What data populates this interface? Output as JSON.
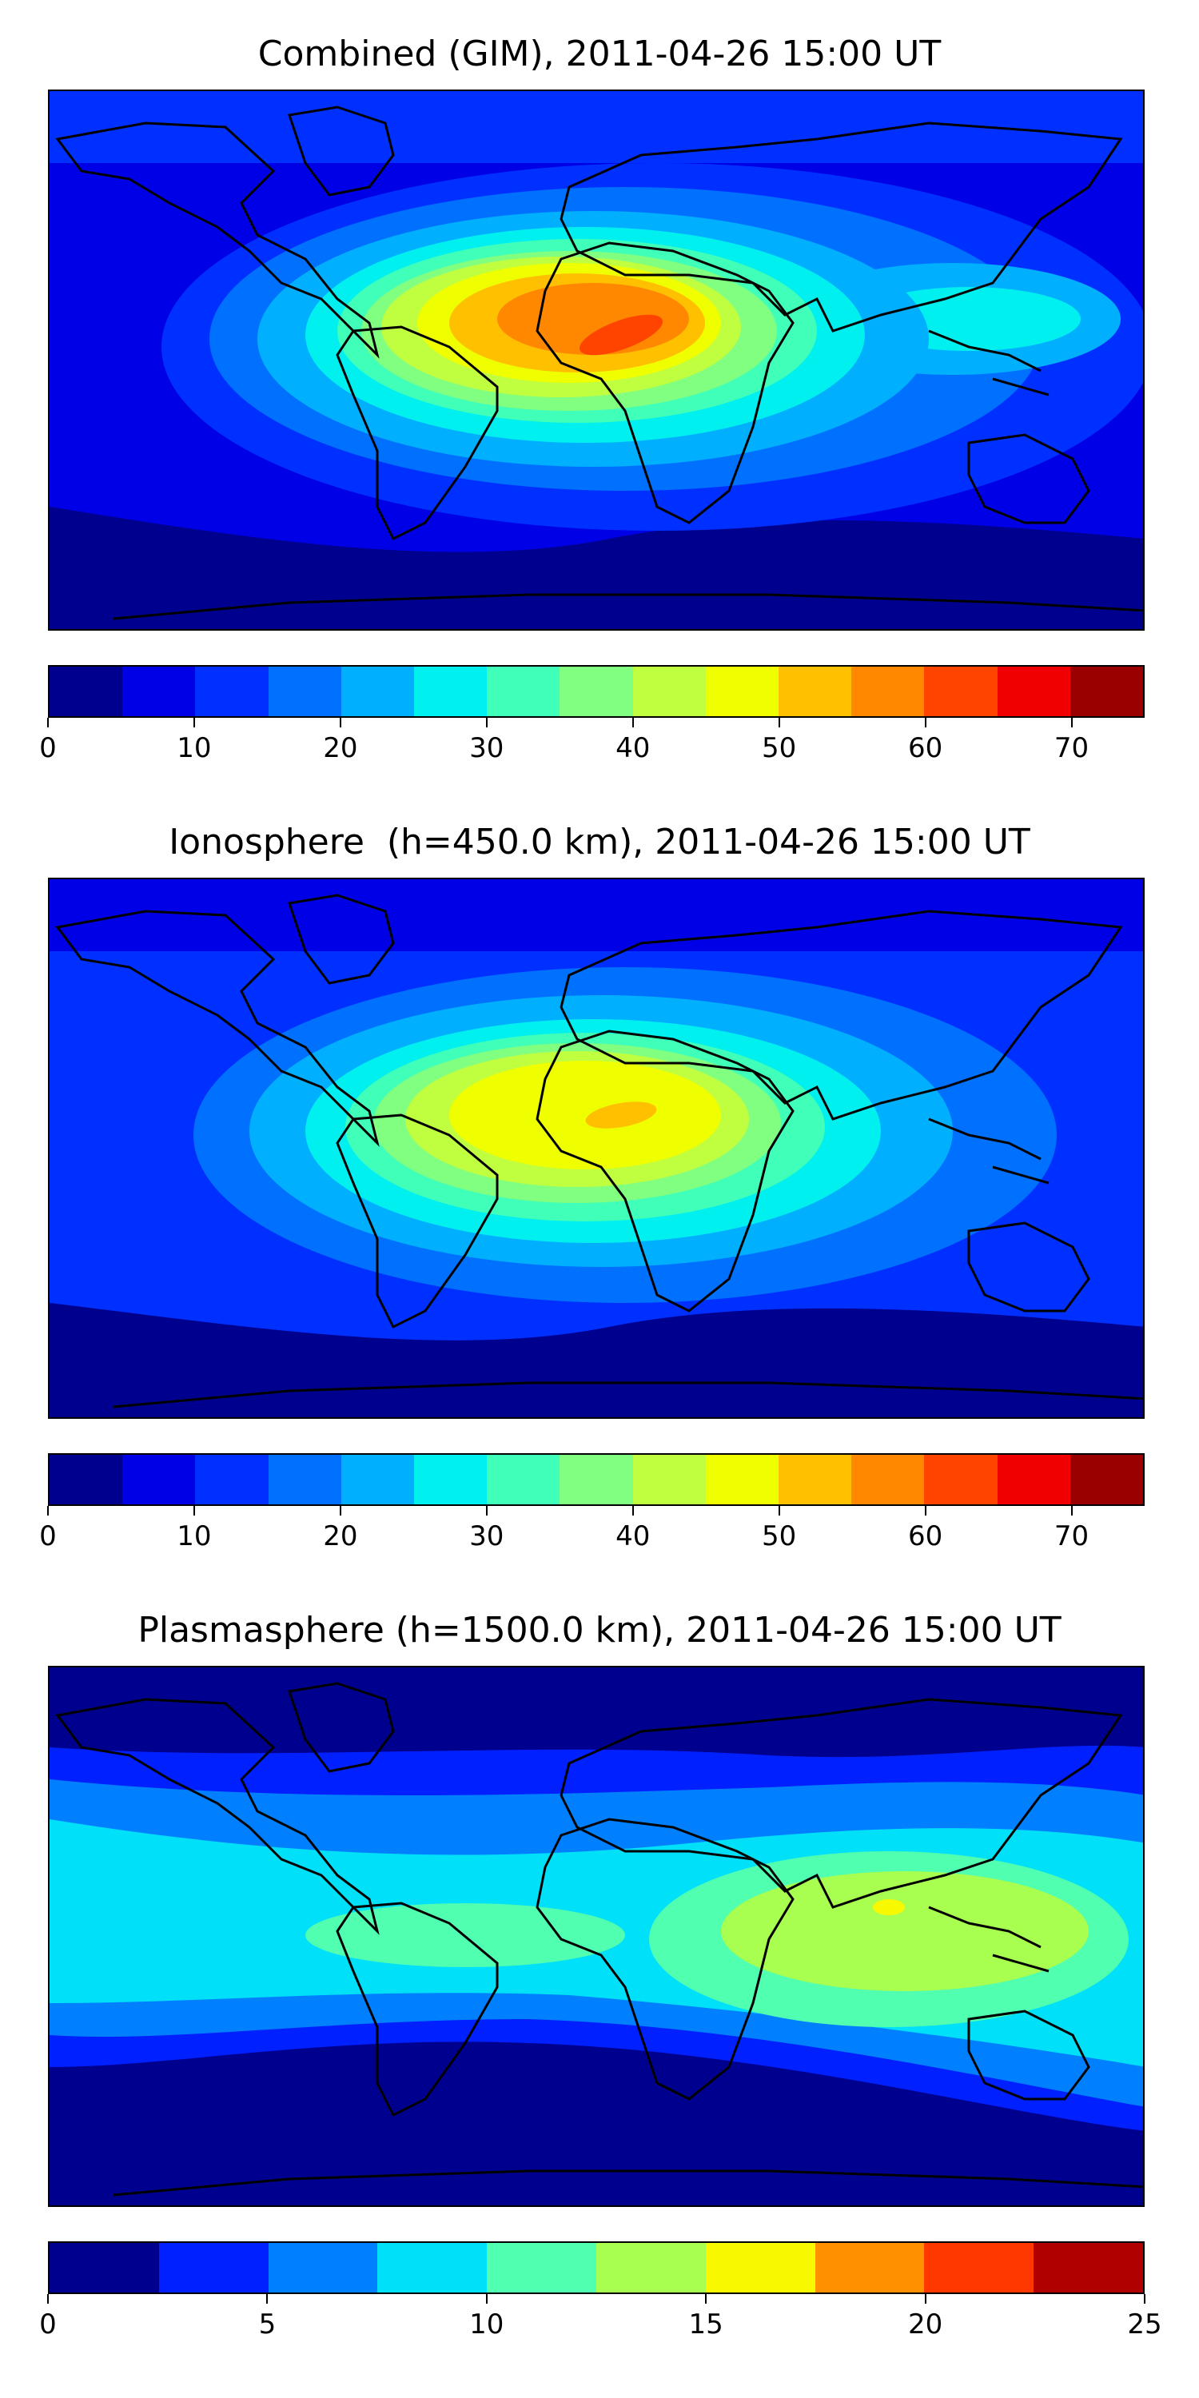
{
  "chart_data": [
    {
      "type": "heatmap",
      "title": "Combined (GIM), 2011-04-26 15:00 UT",
      "map": "world coastline, equirectangular projection",
      "colorbar": {
        "levels": [
          0,
          5,
          10,
          15,
          20,
          25,
          30,
          35,
          40,
          45,
          50,
          55,
          60,
          65,
          70,
          75
        ],
        "ticks": [
          0,
          10,
          20,
          30,
          40,
          50,
          60,
          70
        ],
        "colors": [
          "#00008f",
          "#0000e6",
          "#0030ff",
          "#0070ff",
          "#00b0ff",
          "#00f0f0",
          "#40ffb8",
          "#80ff80",
          "#bfff40",
          "#f0ff00",
          "#ffc000",
          "#ff8800",
          "#ff4400",
          "#f00000",
          "#9b0000"
        ]
      },
      "peak": {
        "value": 60,
        "region": "West Africa / equatorial Atlantic"
      },
      "range": [
        0,
        75
      ]
    },
    {
      "type": "heatmap",
      "title": "Ionosphere  (h=450.0 km), 2011-04-26 15:00 UT",
      "map": "world coastline, equirectangular projection",
      "colorbar": {
        "levels": [
          0,
          5,
          10,
          15,
          20,
          25,
          30,
          35,
          40,
          45,
          50,
          55,
          60,
          65,
          70,
          75
        ],
        "ticks": [
          0,
          10,
          20,
          30,
          40,
          50,
          60,
          70
        ],
        "colors": [
          "#00008f",
          "#0000e6",
          "#0030ff",
          "#0070ff",
          "#00b0ff",
          "#00f0f0",
          "#40ffb8",
          "#80ff80",
          "#bfff40",
          "#f0ff00",
          "#ffc000",
          "#ff8800",
          "#ff4400",
          "#f00000",
          "#9b0000"
        ]
      },
      "peak": {
        "value": 55,
        "region": "West Africa"
      },
      "range": [
        0,
        75
      ]
    },
    {
      "type": "heatmap",
      "title": "Plasmasphere (h=1500.0 km), 2011-04-26 15:00 UT",
      "map": "world coastline, equirectangular projection",
      "colorbar": {
        "levels": [
          0,
          2.5,
          5,
          7.5,
          10,
          12.5,
          15,
          17.5,
          20,
          22.5,
          25
        ],
        "ticks": [
          0,
          5,
          10,
          15,
          20,
          25
        ],
        "colors": [
          "#00008f",
          "#0020ff",
          "#0080ff",
          "#00e0f8",
          "#50ffb0",
          "#a8ff50",
          "#f8f800",
          "#ff9000",
          "#ff3800",
          "#b00000"
        ]
      },
      "peak": {
        "value": 15,
        "region": "India / South Asia"
      },
      "range": [
        0,
        25
      ]
    }
  ]
}
